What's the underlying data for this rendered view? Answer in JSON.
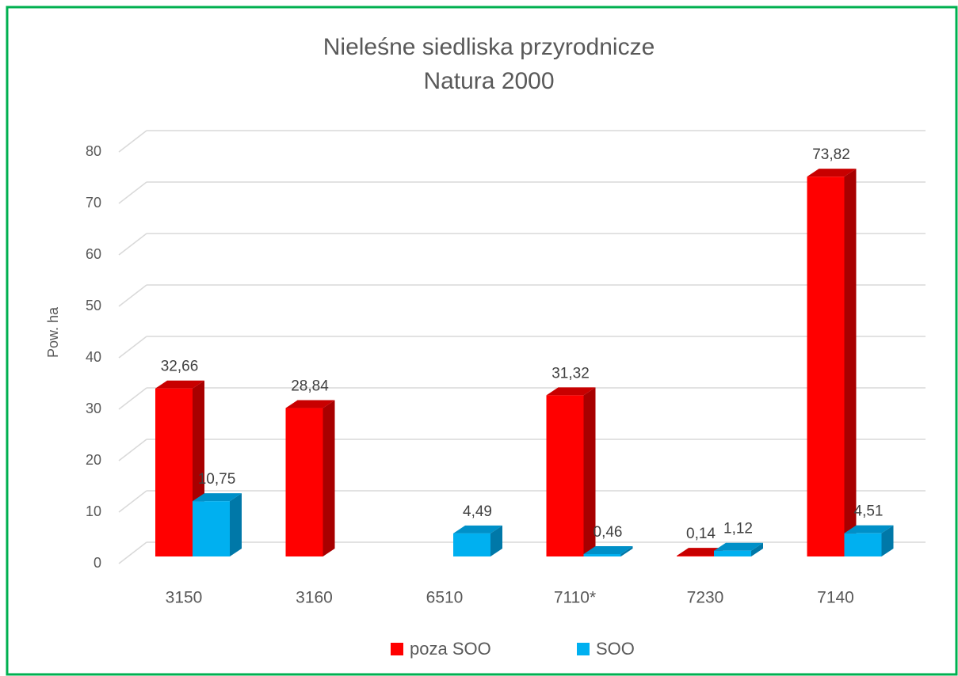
{
  "chart_data": {
    "type": "bar3d",
    "title": "Nieleśne siedliska przyrodnicze",
    "subtitle": "Natura 2000",
    "y_label": "Pow. ha",
    "categories": [
      "3150",
      "3160",
      "6510",
      "7110*",
      "7230",
      "7140"
    ],
    "series": [
      {
        "name": "poza SOO",
        "color": "#ff0000",
        "side_color": "#a80000",
        "top_color": "#c80000",
        "values": [
          32.66,
          28.84,
          null,
          31.32,
          0.14,
          73.82
        ],
        "value_labels": [
          "32,66",
          "28,84",
          null,
          "31,32",
          "0,14",
          "73,82"
        ]
      },
      {
        "name": "SOO",
        "color": "#00b0f0",
        "side_color": "#0078a8",
        "top_color": "#0090c8",
        "values": [
          10.75,
          null,
          4.49,
          0.46,
          1.12,
          4.51
        ],
        "value_labels": [
          "10,75",
          null,
          "4,49",
          "0,46",
          "1,12",
          "4,51"
        ]
      }
    ],
    "ylim": [
      0,
      80
    ],
    "yticks": [
      0,
      10,
      20,
      30,
      40,
      50,
      60,
      70,
      80
    ],
    "grid": true,
    "legend": "bottom"
  }
}
